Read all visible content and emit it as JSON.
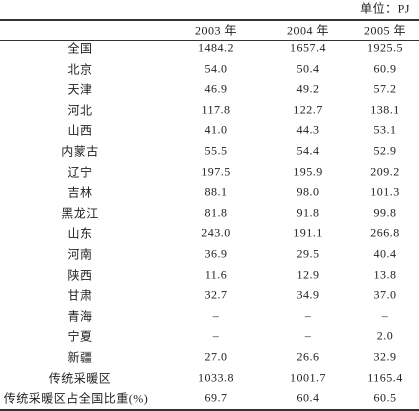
{
  "unit": "单位：PJ",
  "table": {
    "header": [
      "2003 年",
      "2004 年",
      "2005 年"
    ],
    "rows": [
      [
        "全国",
        "1484.2",
        "1657.4",
        "1925.5"
      ],
      [
        "北京",
        "54.0",
        "50.4",
        "60.9"
      ],
      [
        "天津",
        "46.9",
        "49.2",
        "57.2"
      ],
      [
        "河北",
        "117.8",
        "122.7",
        "138.1"
      ],
      [
        "山西",
        "41.0",
        "44.3",
        "53.1"
      ],
      [
        "内蒙古",
        "55.5",
        "54.4",
        "52.9"
      ],
      [
        "辽宁",
        "197.5",
        "195.9",
        "209.2"
      ],
      [
        "吉林",
        "88.1",
        "98.0",
        "101.3"
      ],
      [
        "黑龙江",
        "81.8",
        "91.8",
        "99.8"
      ],
      [
        "山东",
        "243.0",
        "191.1",
        "266.8"
      ],
      [
        "河南",
        "36.9",
        "29.5",
        "40.4"
      ],
      [
        "陕西",
        "11.6",
        "12.9",
        "13.8"
      ],
      [
        "甘肃",
        "32.7",
        "34.9",
        "37.0"
      ],
      [
        "青海",
        "–",
        "–",
        "–"
      ],
      [
        "宁夏",
        "–",
        "–",
        "2.0"
      ],
      [
        "新疆",
        "27.0",
        "26.6",
        "32.9"
      ],
      [
        "传统采暖区",
        "1033.8",
        "1001.7",
        "1165.4"
      ],
      [
        "传统采暖区占全国比重(%)",
        "69.7",
        "60.4",
        "60.5"
      ]
    ]
  }
}
